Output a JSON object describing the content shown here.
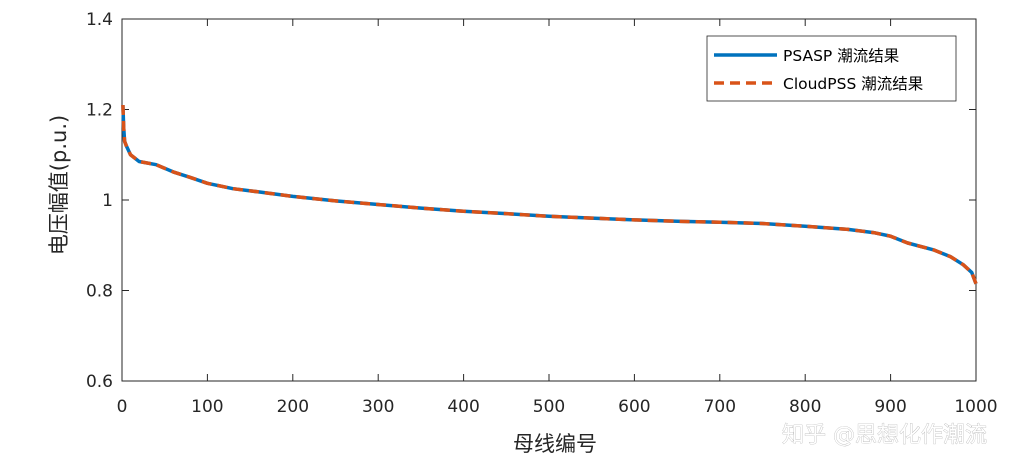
{
  "chart_data": {
    "type": "line",
    "xlabel": "母线编号",
    "ylabel": "电压幅值(p.u.)",
    "xlim": [
      0,
      1000
    ],
    "ylim": [
      0.6,
      1.4
    ],
    "xticks": [
      0,
      100,
      200,
      300,
      400,
      500,
      600,
      700,
      800,
      900,
      1000
    ],
    "yticks": [
      0.6,
      0.8,
      1,
      1.2,
      1.4
    ],
    "xtick_labels": [
      "0",
      "100",
      "200",
      "300",
      "400",
      "500",
      "600",
      "700",
      "800",
      "900",
      "1000"
    ],
    "ytick_labels": [
      "0.6",
      "0.8",
      "1",
      "1.2",
      "1.4"
    ],
    "grid": false,
    "legend_position": "top-right",
    "series": [
      {
        "name": "PSASP 潮流结果",
        "color": "#0072BD",
        "style": "solid",
        "x": [
          1,
          2,
          3,
          5,
          10,
          20,
          40,
          60,
          80,
          100,
          130,
          160,
          200,
          250,
          300,
          350,
          400,
          450,
          500,
          550,
          600,
          650,
          700,
          750,
          800,
          850,
          880,
          900,
          920,
          950,
          970,
          985,
          995,
          1000
        ],
        "y": [
          1.21,
          1.16,
          1.13,
          1.12,
          1.1,
          1.085,
          1.078,
          1.062,
          1.05,
          1.037,
          1.025,
          1.018,
          1.008,
          0.998,
          0.99,
          0.982,
          0.975,
          0.97,
          0.964,
          0.96,
          0.956,
          0.953,
          0.951,
          0.948,
          0.942,
          0.935,
          0.928,
          0.92,
          0.905,
          0.89,
          0.875,
          0.857,
          0.84,
          0.815
        ]
      },
      {
        "name": "CloudPSS 潮流结果",
        "color": "#D95319",
        "style": "dashed",
        "x": [
          1,
          2,
          3,
          5,
          10,
          20,
          40,
          60,
          80,
          100,
          130,
          160,
          200,
          250,
          300,
          350,
          400,
          450,
          500,
          550,
          600,
          650,
          700,
          750,
          800,
          850,
          880,
          900,
          920,
          950,
          970,
          985,
          995,
          1000
        ],
        "y": [
          1.21,
          1.16,
          1.13,
          1.12,
          1.1,
          1.085,
          1.078,
          1.062,
          1.05,
          1.037,
          1.025,
          1.018,
          1.008,
          0.998,
          0.99,
          0.982,
          0.975,
          0.97,
          0.964,
          0.96,
          0.956,
          0.953,
          0.951,
          0.948,
          0.942,
          0.935,
          0.928,
          0.92,
          0.905,
          0.89,
          0.875,
          0.857,
          0.84,
          0.815
        ]
      }
    ]
  },
  "watermark": "知乎 @思想化作潮流"
}
